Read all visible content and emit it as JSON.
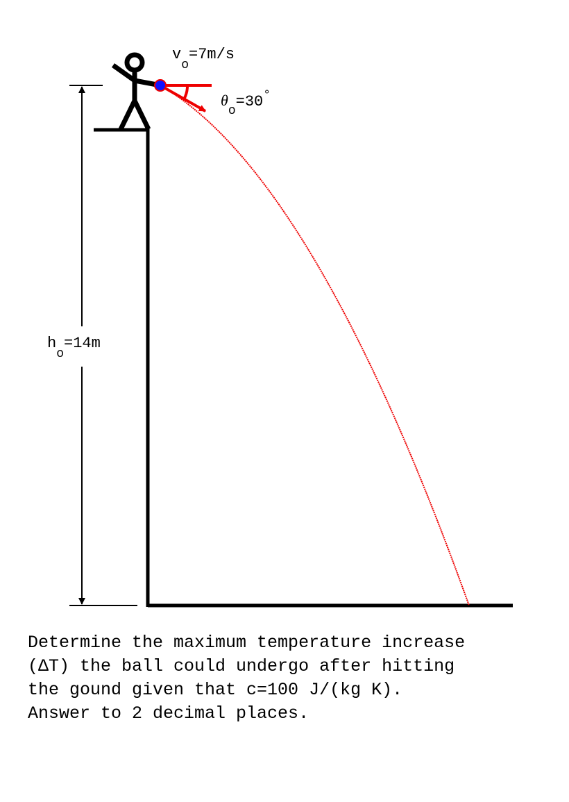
{
  "velocity_label": {
    "symbol": "v",
    "subscript": "o",
    "value": "=7m/s"
  },
  "angle_label": {
    "symbol": "θ",
    "subscript": "o",
    "value": "=30",
    "unit": "°"
  },
  "height_label": {
    "symbol": "h",
    "subscript": "o",
    "value": "=14m"
  },
  "problem": {
    "lines": [
      "Determine the maximum temperature increase",
      "(ΔT) the ball could undergo after hitting",
      "the gound given that c=100 J/(kg K).",
      "Answer to 2 decimal places."
    ]
  }
}
